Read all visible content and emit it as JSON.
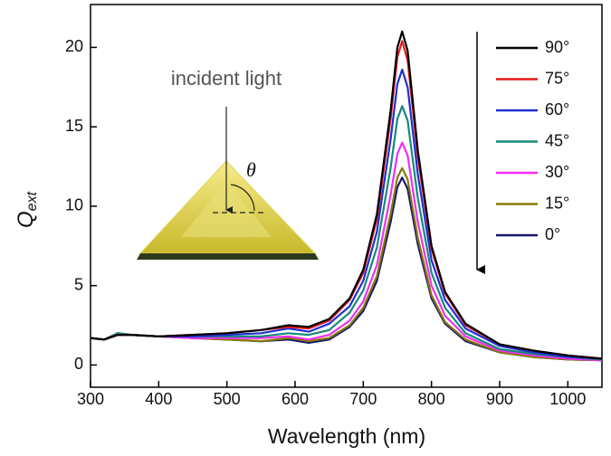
{
  "chart_data": {
    "type": "line",
    "xlabel": "Wavelength (nm)",
    "ylabel": "Q",
    "ylabel_subscript": "ext",
    "annotations": [
      "incident light",
      "θ"
    ],
    "x": [
      300,
      320,
      340,
      360,
      400,
      450,
      500,
      550,
      590,
      620,
      650,
      680,
      700,
      720,
      740,
      750,
      757,
      765,
      780,
      800,
      820,
      850,
      900,
      950,
      1000,
      1050
    ],
    "series": [
      {
        "name": "90°",
        "color": "#000000",
        "values": [
          1.7,
          1.6,
          1.9,
          1.9,
          1.8,
          1.9,
          2.0,
          2.2,
          2.5,
          2.4,
          2.9,
          4.2,
          6.0,
          9.5,
          16.0,
          20.0,
          21.0,
          19.8,
          13.5,
          7.5,
          4.6,
          2.6,
          1.3,
          0.9,
          0.6,
          0.4
        ]
      },
      {
        "name": "75°",
        "color": "#e8191c",
        "values": [
          1.7,
          1.6,
          1.9,
          1.9,
          1.8,
          1.9,
          2.0,
          2.2,
          2.4,
          2.3,
          2.8,
          4.1,
          5.8,
          9.2,
          15.5,
          19.4,
          20.4,
          19.2,
          13.1,
          7.3,
          4.5,
          2.5,
          1.3,
          0.9,
          0.6,
          0.4
        ]
      },
      {
        "name": "60°",
        "color": "#1f2fd6",
        "values": [
          1.7,
          1.6,
          1.9,
          1.9,
          1.8,
          1.8,
          1.9,
          2.0,
          2.3,
          2.1,
          2.6,
          3.7,
          5.3,
          8.4,
          14.2,
          17.7,
          18.6,
          17.5,
          12.0,
          6.6,
          4.1,
          2.3,
          1.2,
          0.8,
          0.5,
          0.4
        ]
      },
      {
        "name": "45°",
        "color": "#16897a",
        "values": [
          1.7,
          1.6,
          2.0,
          1.9,
          1.8,
          1.8,
          1.8,
          1.8,
          2.0,
          1.9,
          2.2,
          3.3,
          4.7,
          7.4,
          12.4,
          15.5,
          16.3,
          15.4,
          10.5,
          5.8,
          3.6,
          2.0,
          1.0,
          0.7,
          0.5,
          0.35
        ]
      },
      {
        "name": "30°",
        "color": "#f22ef2",
        "values": [
          1.7,
          1.6,
          2.0,
          1.9,
          1.8,
          1.7,
          1.7,
          1.7,
          1.8,
          1.6,
          1.9,
          2.8,
          4.0,
          6.3,
          10.7,
          13.3,
          14.0,
          13.2,
          9.0,
          5.0,
          3.1,
          1.8,
          0.9,
          0.6,
          0.4,
          0.3
        ]
      },
      {
        "name": "15°",
        "color": "#857a05",
        "values": [
          1.7,
          1.6,
          2.0,
          1.9,
          1.8,
          1.7,
          1.6,
          1.5,
          1.7,
          1.5,
          1.7,
          2.5,
          3.6,
          5.6,
          9.5,
          11.8,
          12.4,
          11.7,
          8.0,
          4.4,
          2.7,
          1.6,
          0.8,
          0.5,
          0.35,
          0.3
        ]
      },
      {
        "name": "0°",
        "color": "#17186e",
        "values": [
          1.7,
          1.6,
          2.0,
          1.9,
          1.8,
          1.7,
          1.6,
          1.5,
          1.6,
          1.4,
          1.6,
          2.4,
          3.4,
          5.3,
          9.0,
          11.2,
          11.8,
          11.1,
          7.6,
          4.2,
          2.6,
          1.5,
          0.8,
          0.5,
          0.35,
          0.3
        ]
      }
    ],
    "xlim": [
      300,
      1050
    ],
    "ylim": [
      -1.4,
      22.7
    ],
    "xticks": [
      300,
      400,
      500,
      600,
      700,
      800,
      900,
      1000
    ],
    "yticks": [
      0,
      5,
      10,
      15,
      20
    ],
    "legend": "upper right"
  }
}
